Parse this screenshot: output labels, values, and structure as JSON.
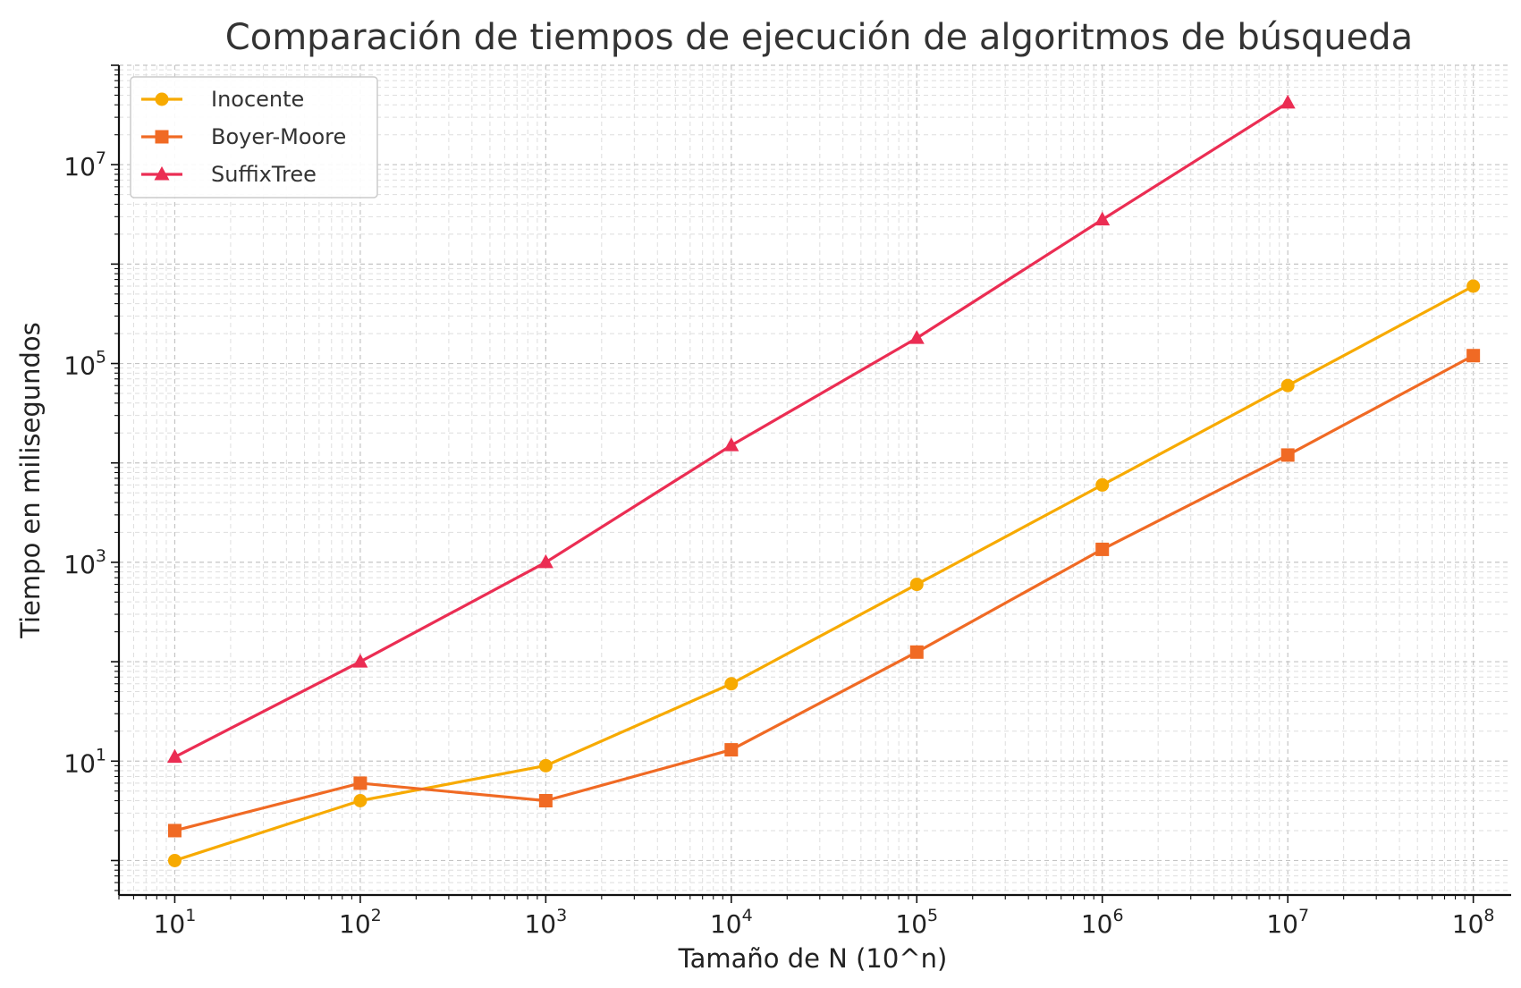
{
  "chart_data": {
    "type": "line",
    "title": "Comparación de tiempos de ejecución de algoritmos de búsqueda",
    "xlabel": "Tamaño de N (10^n)",
    "ylabel": "Tiempo en milisegundos",
    "xscale": "log",
    "yscale": "log",
    "xlim": [
      5.0,
      160000000
    ],
    "ylim": [
      0.45,
      100000000
    ],
    "grid": true,
    "legend_position": "top-left",
    "x_ticks": [
      {
        "base": "10",
        "exp": "1"
      },
      {
        "base": "10",
        "exp": "2"
      },
      {
        "base": "10",
        "exp": "3"
      },
      {
        "base": "10",
        "exp": "4"
      },
      {
        "base": "10",
        "exp": "5"
      },
      {
        "base": "10",
        "exp": "6"
      },
      {
        "base": "10",
        "exp": "7"
      },
      {
        "base": "10",
        "exp": "8"
      }
    ],
    "y_ticks": [
      {
        "base": "10",
        "exp": "1"
      },
      {
        "base": "10",
        "exp": "3"
      },
      {
        "base": "10",
        "exp": "5"
      },
      {
        "base": "10",
        "exp": "7"
      }
    ],
    "series": [
      {
        "name": "Inocente",
        "color": "#F7AA00",
        "marker": "circle",
        "x": [
          10,
          100,
          1000,
          10000,
          100000,
          1000000,
          10000000,
          100000000
        ],
        "values": [
          1,
          4,
          9,
          60,
          600,
          6000,
          60000,
          600000
        ]
      },
      {
        "name": "Boyer-Moore",
        "color": "#F06A24",
        "marker": "square",
        "x": [
          10,
          100,
          1000,
          10000,
          100000,
          1000000,
          10000000,
          100000000
        ],
        "values": [
          2,
          6,
          4,
          13,
          125,
          1350,
          12000,
          120000
        ]
      },
      {
        "name": "SuffixTree",
        "color": "#EB2D53",
        "marker": "triangle",
        "x": [
          10,
          100,
          1000,
          10000,
          100000,
          1000000,
          10000000
        ],
        "values": [
          11,
          100,
          1000,
          15000,
          180000,
          2800000,
          42000000
        ]
      }
    ]
  }
}
